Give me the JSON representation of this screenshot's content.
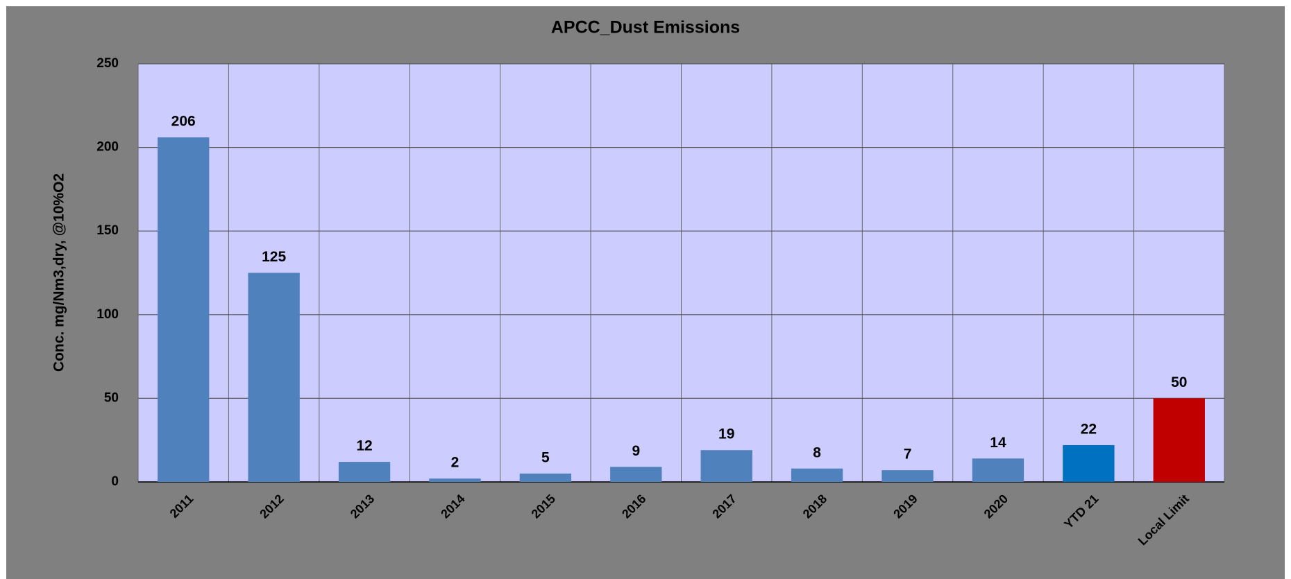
{
  "chart_data": {
    "type": "bar",
    "title": "APCC_Dust Emissions",
    "y_axis_label": "Conc. mg/Nm3,dry, @10%O2",
    "categories": [
      "2011",
      "2012",
      "2013",
      "2014",
      "2015",
      "2016",
      "2017",
      "2018",
      "2019",
      "2020",
      "YTD 21",
      "Local Limit"
    ],
    "values": [
      206,
      125,
      12,
      2,
      5,
      9,
      19,
      8,
      7,
      14,
      22,
      50
    ],
    "colors": [
      "#4f81bd",
      "#4f81bd",
      "#4f81bd",
      "#4f81bd",
      "#4f81bd",
      "#4f81bd",
      "#4f81bd",
      "#4f81bd",
      "#4f81bd",
      "#4f81bd",
      "#0070c0",
      "#c00000"
    ],
    "ylim": [
      0,
      250
    ],
    "yticks": [
      0,
      50,
      100,
      150,
      200,
      250
    ],
    "grid": true
  }
}
